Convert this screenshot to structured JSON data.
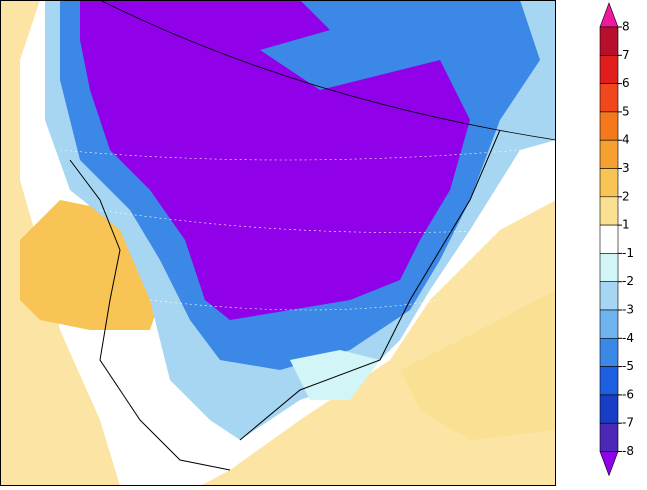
{
  "colorbar": {
    "labels": [
      8,
      7,
      6,
      5,
      4,
      3,
      2,
      1,
      -1,
      -2,
      -3,
      -4,
      -5,
      -6,
      -7,
      -8
    ],
    "colors": [
      "#f0189c",
      "#b8102c",
      "#e01e1e",
      "#f0481c",
      "#f5781c",
      "#f6a030",
      "#f8c456",
      "#fae092",
      "#ffffff",
      "#d2f6f8",
      "#a6d6f2",
      "#6eb2ee",
      "#3c88e6",
      "#1e5ee0",
      "#183ec8",
      "#4c28b8",
      "#9000e8"
    ]
  }
}
